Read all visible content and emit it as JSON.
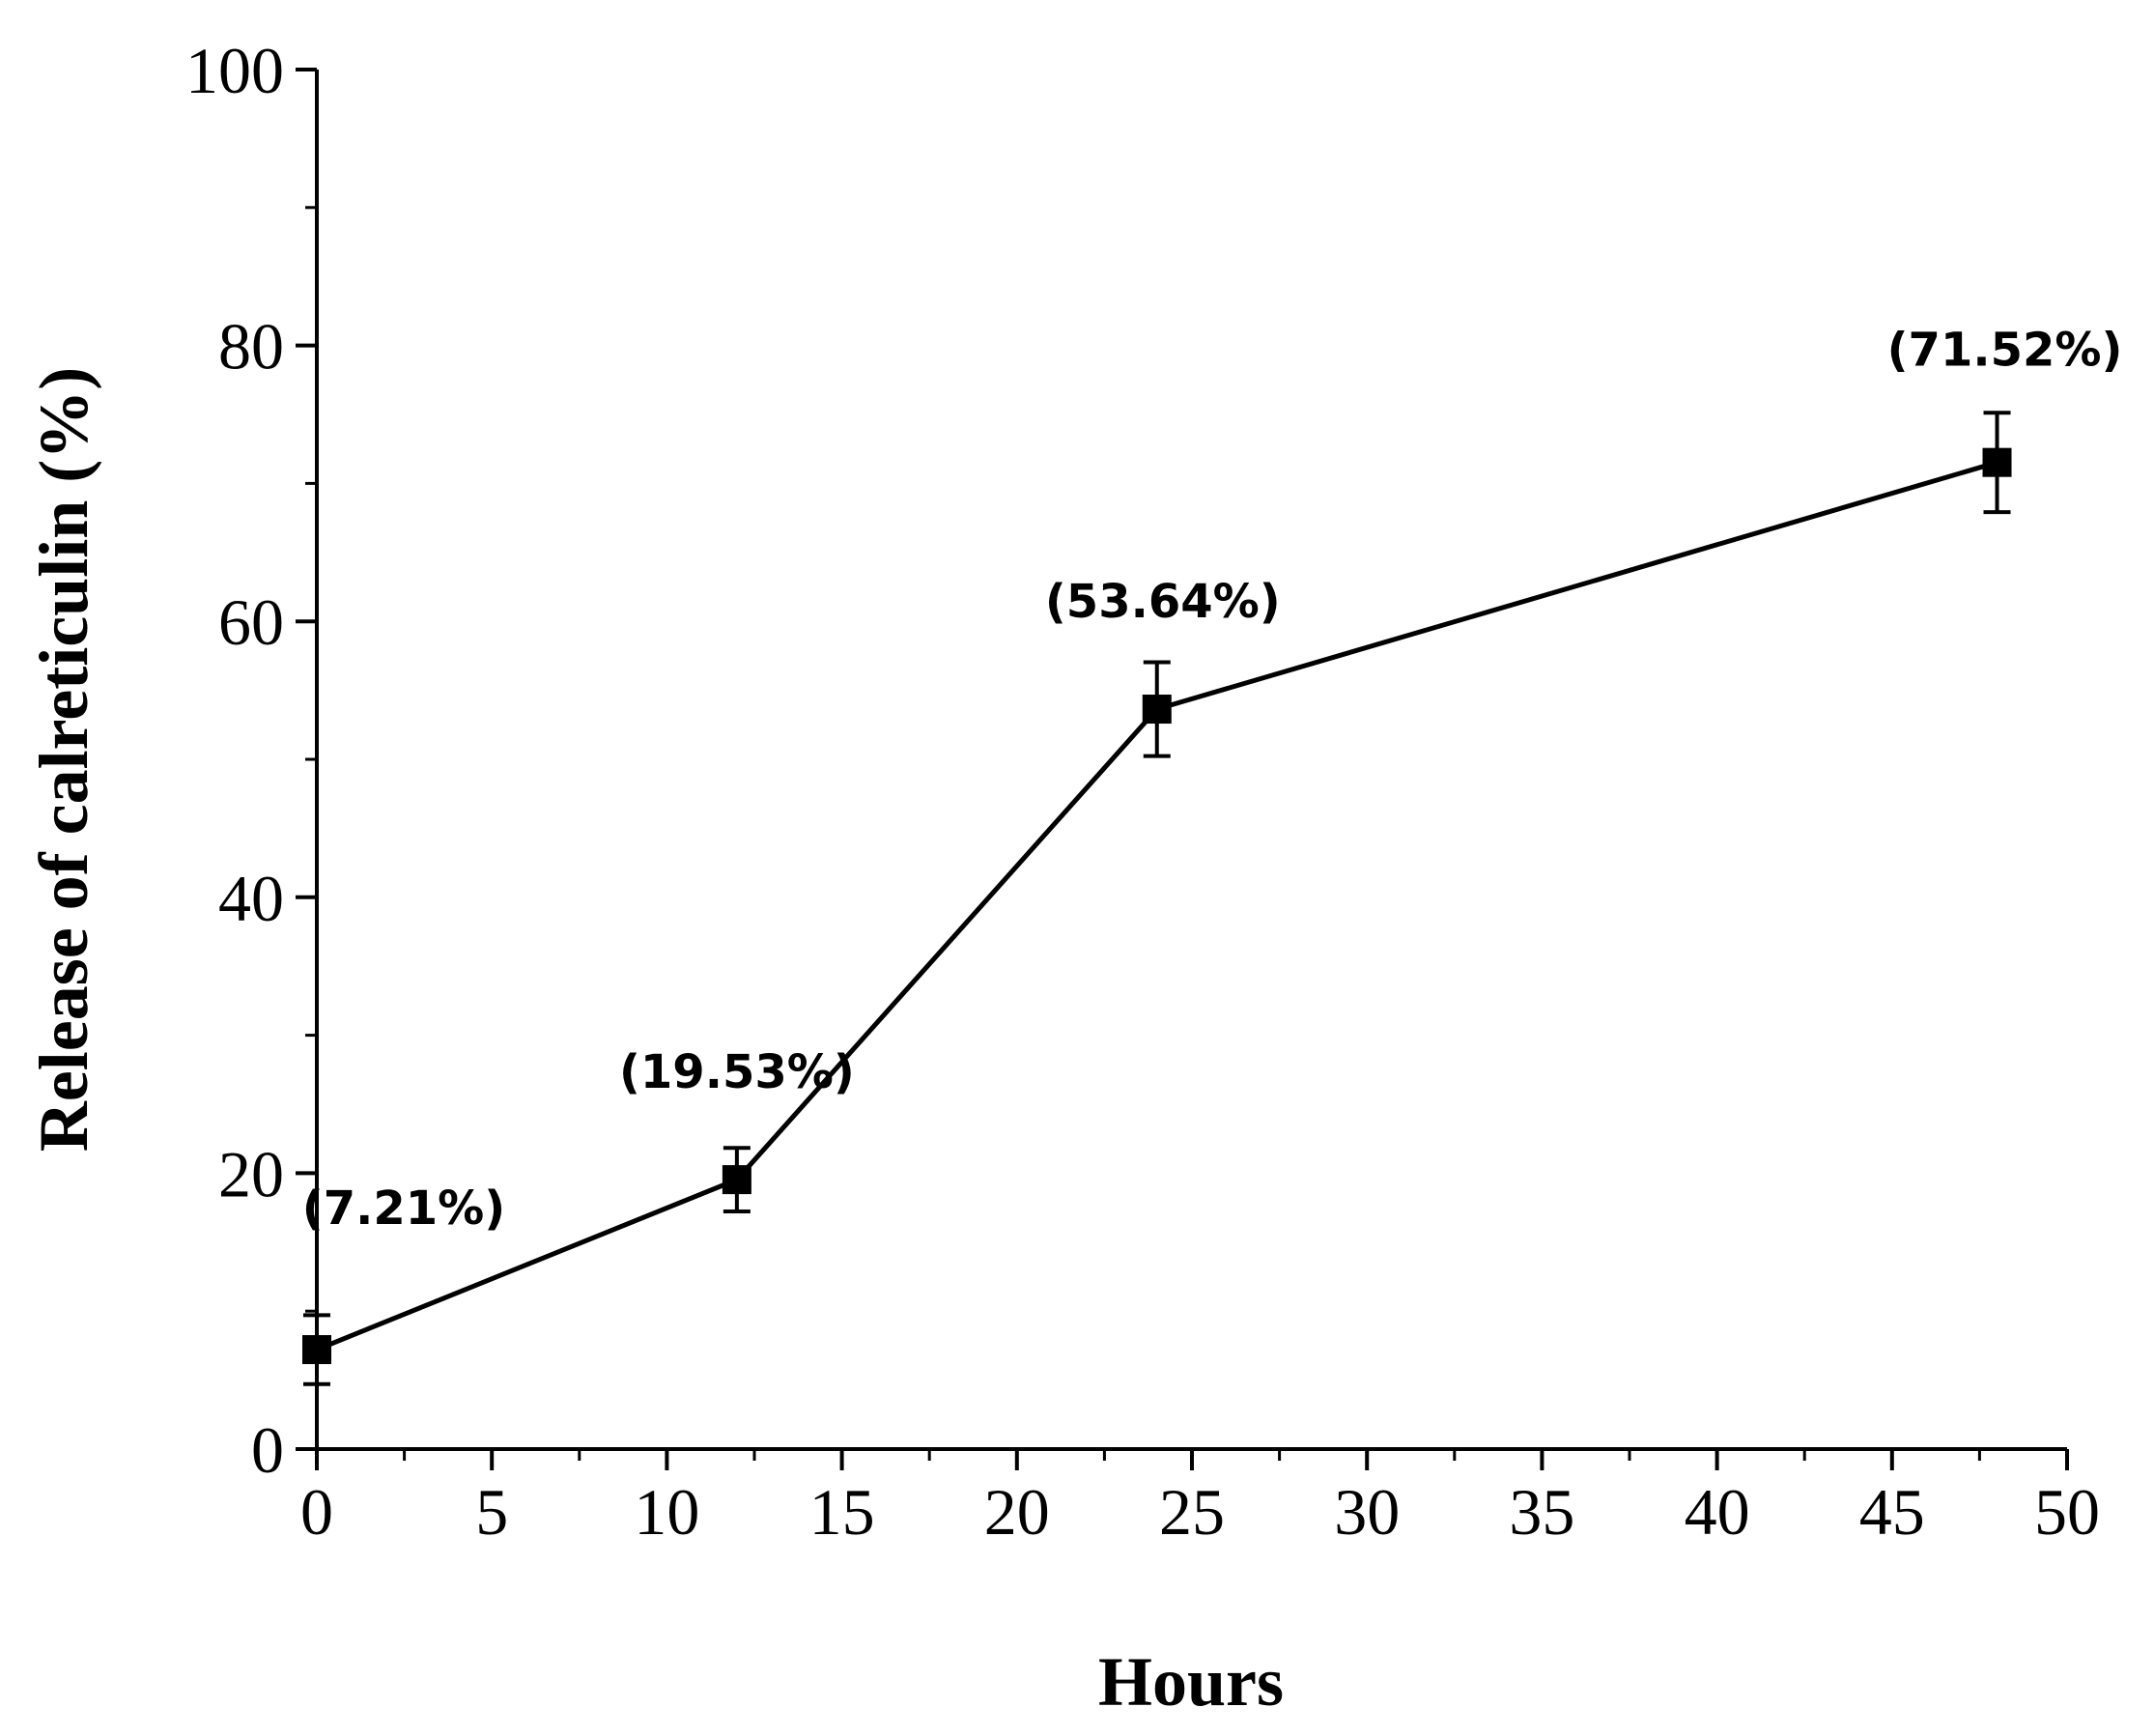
{
  "chart_data": {
    "type": "line",
    "title": "",
    "xlabel": "Hours",
    "ylabel": "Release of calreticulin (%)",
    "xlim": [
      0,
      50
    ],
    "ylim": [
      0,
      100
    ],
    "x_ticks": [
      "0",
      "5",
      "10",
      "15",
      "20",
      "25",
      "30",
      "35",
      "40",
      "45",
      "50"
    ],
    "y_ticks": [
      "0",
      "20",
      "40",
      "60",
      "80",
      "100"
    ],
    "grid": false,
    "legend": "none",
    "marker": "square",
    "color": "#000000",
    "series": [
      {
        "x": [
          0,
          12,
          24,
          48
        ],
        "y": [
          7.21,
          19.53,
          53.64,
          71.52
        ],
        "error": [
          2.5,
          2.3,
          3.4,
          3.6
        ],
        "labels": [
          "(7.21%)",
          "(19.53%)",
          "(53.64%)",
          "(71.52%)"
        ]
      }
    ]
  }
}
